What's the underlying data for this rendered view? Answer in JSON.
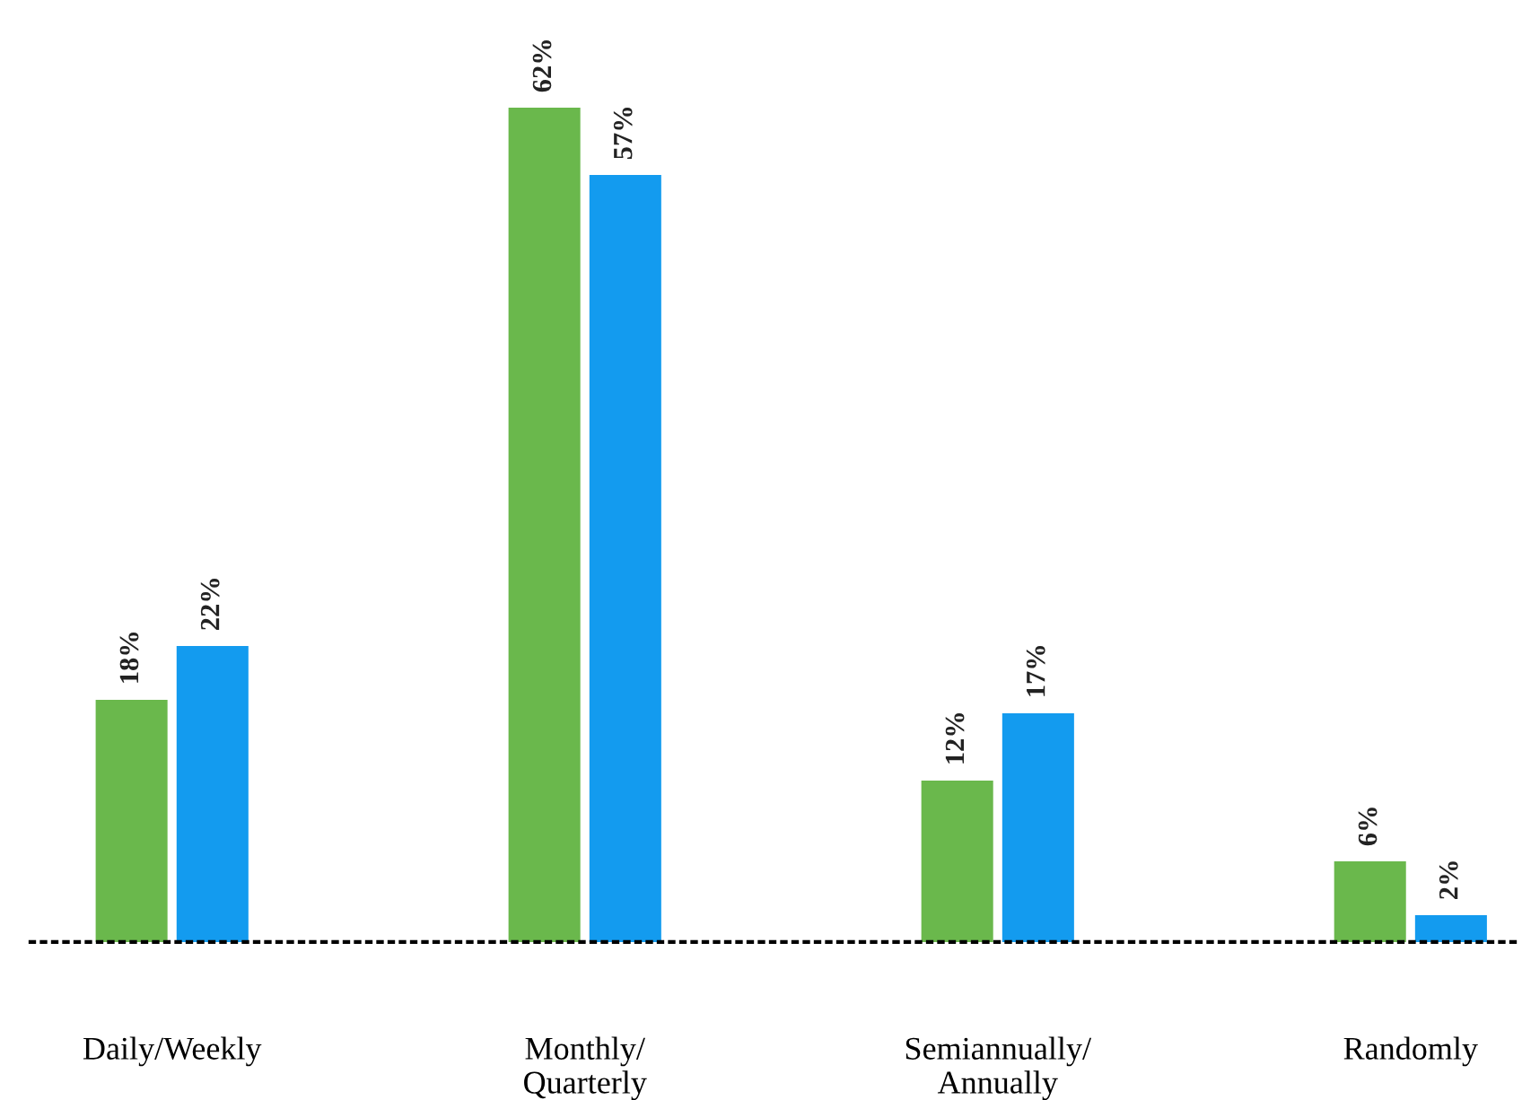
{
  "chart_data": {
    "type": "bar",
    "categories": [
      "Daily/Weekly",
      "Monthly/\nQuarterly",
      "Semiannually/\nAnnually",
      "Randomly"
    ],
    "series": [
      {
        "color": "#6ab84c",
        "values": [
          18,
          62,
          12,
          6
        ],
        "value_labels": [
          "18%",
          "62%",
          "12%",
          "6%"
        ]
      },
      {
        "color": "#139bef",
        "values": [
          22,
          57,
          17,
          2
        ],
        "value_labels": [
          "22%",
          "57%",
          "17%",
          "2%"
        ]
      }
    ],
    "grid": false,
    "legend": false
  }
}
